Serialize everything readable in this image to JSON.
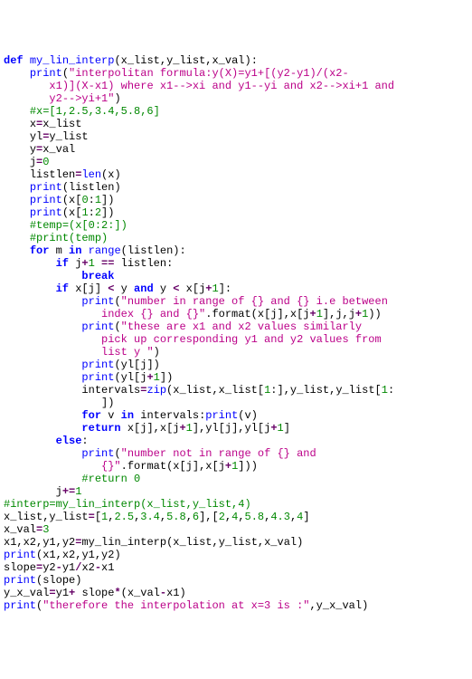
{
  "code": {
    "font_family": "Courier New",
    "font_size_pt": 9,
    "background": "#ffffff",
    "colors": {
      "keyword": "#0000ff",
      "string": "#bb0088",
      "number": "#008800",
      "comment": "#008800",
      "operator": "#660066",
      "default": "#000000"
    },
    "tokens": {
      "def": "def",
      "fname": "my_lin_interp",
      "lp": "(",
      "rp": ")",
      "colon": ":",
      "comma": ",",
      "x_list": "x_list",
      "y_list": "y_list",
      "x_val": "x_val",
      "print": "print",
      "s1": "\"interpolitan formula:y(X)=y1+[(y2-y1)/(x2-",
      "s1b": "x1)](X-x1) where x1-->xi and y1--yi and x2-->xi+1 and ",
      "s1c": "y2-->yi+1\"",
      "c1": "#x=[1,2.5,3.4,5.8,6]",
      "x": "x",
      "eq": "=",
      "yl": "yl",
      "y": "y",
      "j": "j",
      "n0": "0",
      "listlen": "listlen",
      "len": "len",
      "lbr": "[",
      "rbr": "]",
      "n1": "1",
      "n2": "2",
      "c2": "#temp=(x[0:2:])",
      "c3": "#print(temp)",
      "for": "for",
      "m": "m",
      "in": "in",
      "range": "range",
      "if": "if",
      "plus": "+",
      "eqeq": "==",
      "break": "break",
      "lt": "<",
      "and": "and",
      "s2": "\"number in range of {} and {} i.e between ",
      "s2b": "index {} and {}\"",
      "dot": ".",
      "format": "format",
      "s3": "\"these are x1 and x2 values similarly ",
      "s3b": "pick up corresponding y1 and y2 values from ",
      "s3c": "list y \"",
      "intervals": "intervals",
      "zip": "zip",
      "v": "v",
      "return": "return",
      "else": "else",
      "s4": "\"number not in range of {} and ",
      "s4b": "{}\"",
      "c4": "#return 0",
      "pluseq": "+=",
      "c5": "#interp=my_lin_interp(x_list,y_list,4)",
      "listlit": "[",
      "n1f": "1",
      "n25": "2.5",
      "n34": "3.4",
      "n58": "5.8",
      "n6": "6",
      "n2f": "2",
      "n4": "4",
      "n58b": "5.8",
      "n43": "4.3",
      "n4b": "4",
      "n3": "3",
      "x1": "x1",
      "x2": "x2",
      "y1": "y1",
      "y2": "y2",
      "slope": "slope",
      "minus": "-",
      "div": "/",
      "y_x_val": "y_x_val",
      "star": "*",
      "s5": "\"therefore the interpolation at x=3 is :\""
    }
  }
}
